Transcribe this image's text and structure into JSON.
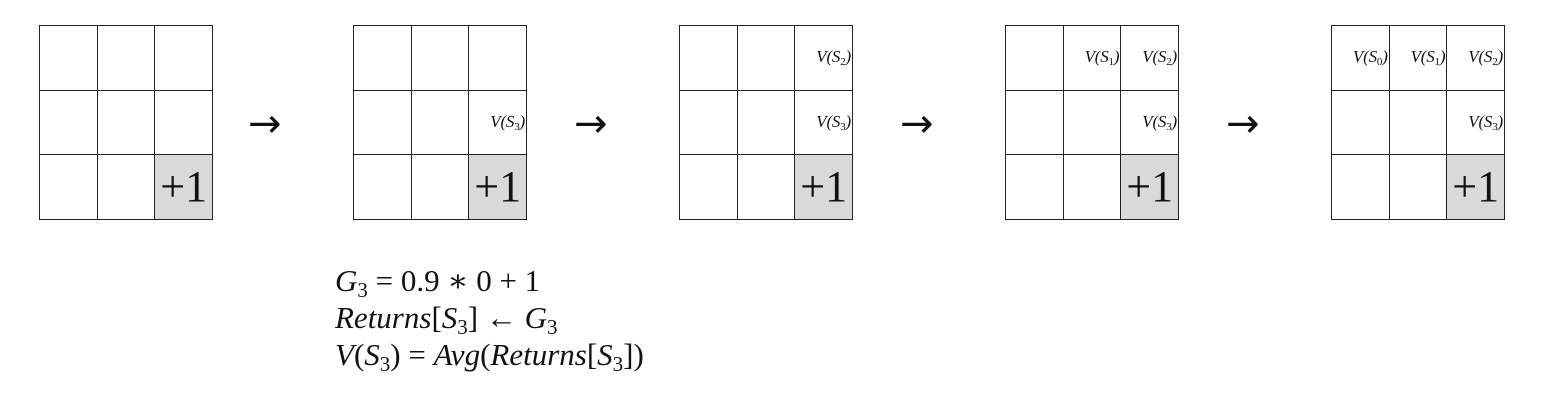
{
  "grids": [
    {
      "cells": [
        "",
        "",
        "",
        "",
        "",
        "",
        "",
        "",
        "+1"
      ]
    },
    {
      "cells": [
        "",
        "",
        "",
        "",
        "",
        "V(S3)",
        "",
        "",
        "+1"
      ]
    },
    {
      "cells": [
        "",
        "",
        "V(S2)",
        "",
        "",
        "V(S3)",
        "",
        "",
        "+1"
      ]
    },
    {
      "cells": [
        "",
        "V(S1)",
        "V(S2)",
        "",
        "",
        "V(S3)",
        "",
        "",
        "+1"
      ]
    },
    {
      "cells": [
        "V(S0)",
        "V(S1)",
        "V(S2)",
        "",
        "",
        "V(S3)",
        "",
        "",
        "+1"
      ]
    }
  ],
  "goal_cell_index": 8,
  "goal_color": "#d9d9d9",
  "arrow_symbol": "→",
  "equations": [
    "G3 = 0.9 ∗ 0 + 1",
    "Returns[S3] ← G3",
    "V(S3) = Avg(Returns[S3])"
  ]
}
